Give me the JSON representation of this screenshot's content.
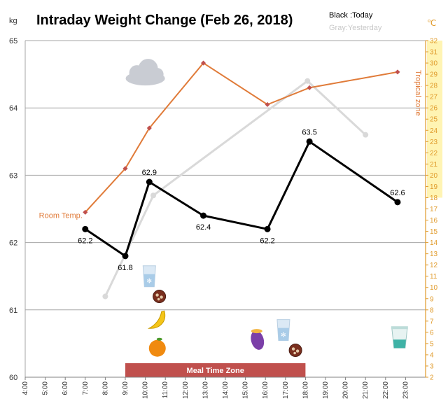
{
  "chart_data": {
    "type": "line",
    "title": "Intraday Weight Change (Feb 26, 2018)",
    "legend_text": [
      "Black :Today",
      "Gray:Yesterday"
    ],
    "ylabel_left_unit": "kg",
    "ylabel_right_unit": "℃",
    "ylabel_right": "Tropical zone",
    "ylim_left": [
      60,
      65
    ],
    "ylim_right": [
      2,
      32
    ],
    "y_ticks_left": [
      "60",
      "61",
      "62",
      "63",
      "64",
      "65"
    ],
    "y_ticks_right": [
      "2",
      "3",
      "4",
      "5",
      "6",
      "7",
      "8",
      "9",
      "10",
      "11",
      "12",
      "13",
      "14",
      "15",
      "16",
      "17",
      "18",
      "19",
      "20",
      "21",
      "22",
      "23",
      "24",
      "25",
      "26",
      "27",
      "28",
      "29",
      "30",
      "31",
      "32"
    ],
    "x_range": [
      4,
      24
    ],
    "x_ticks": [
      "4:00",
      "5:00",
      "6:00",
      "7:00",
      "8:00",
      "9:00",
      "10:00",
      "11:00",
      "12:00",
      "13:00",
      "14:00",
      "15:00",
      "16:00",
      "17:00",
      "18:00",
      "19:00",
      "20:00",
      "21:00",
      "22:00",
      "23:00"
    ],
    "tropical_zone_from": 18,
    "meal_zone": {
      "label": "Meal Time Zone",
      "from": 9,
      "to": 18,
      "color": "#c0504d"
    },
    "grid": true,
    "series": [
      {
        "color": "#000000",
        "points": [
          [
            7,
            62.2
          ],
          [
            9,
            61.8
          ],
          [
            10.2,
            62.9
          ],
          [
            12.9,
            62.4
          ],
          [
            16.1,
            62.2
          ],
          [
            18.2,
            63.5
          ],
          [
            22.6,
            62.6
          ]
        ],
        "labels": [
          "62.2",
          "61.8",
          "62.9",
          "62.4",
          "62.2",
          "63.5",
          "62.6"
        ]
      },
      {
        "color": "#d9d9d9",
        "points": [
          [
            8,
            61.2
          ],
          [
            10.4,
            62.7
          ],
          [
            18.1,
            64.4
          ],
          [
            21,
            63.6
          ]
        ]
      },
      {
        "name": "Room Temp.",
        "axis": "right",
        "color": "#e07b39",
        "points": [
          [
            7,
            16.7
          ],
          [
            9,
            20.6
          ],
          [
            10.2,
            24.2
          ],
          [
            12.9,
            30
          ],
          [
            16.1,
            26.3
          ],
          [
            18.2,
            27.8
          ],
          [
            22.6,
            29.2
          ]
        ]
      }
    ],
    "icons": [
      {
        "name": "cloud-icon",
        "x": 10,
        "y": 64.5
      },
      {
        "name": "water-glass-icon",
        "x": 10.2,
        "y": 61.5
      },
      {
        "name": "cookie-icon",
        "x": 10.7,
        "y": 61.2
      },
      {
        "name": "banana-icon",
        "x": 10.6,
        "y": 60.85
      },
      {
        "name": "orange-icon",
        "x": 10.6,
        "y": 60.45
      },
      {
        "name": "sweet-potato-icon",
        "x": 15.6,
        "y": 60.55
      },
      {
        "name": "water-glass-icon",
        "x": 16.9,
        "y": 60.7
      },
      {
        "name": "cookie-icon",
        "x": 17.5,
        "y": 60.4
      },
      {
        "name": "cup-icon",
        "x": 22.7,
        "y": 60.58
      }
    ]
  }
}
